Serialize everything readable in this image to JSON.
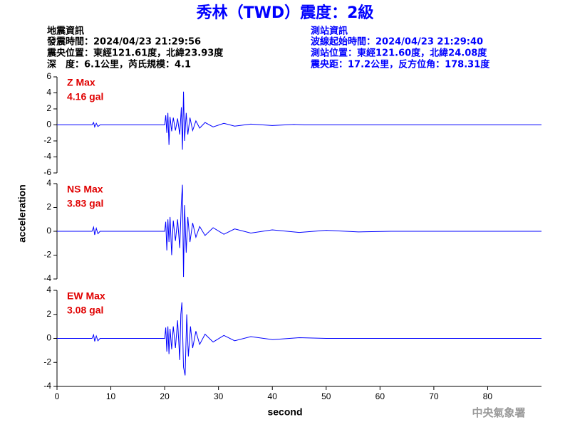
{
  "header": {
    "title": "秀林（TWD）震度：2級",
    "left": [
      "地震資訊",
      "發震時間：2024/04/23 21:29:56",
      "震央位置：東經121.61度，北緯23.93度",
      "深　度：6.1公里，芮氏規模：4.1"
    ],
    "right": [
      "測站資訊",
      "波線起始時間：2024/04/23 21:29:40",
      "測站位置：東經121.60度，北緯24.08度",
      "震央距：17.2公里，反方位角：178.31度"
    ],
    "footer": "中央氣象署"
  },
  "chart_data": [
    {
      "type": "line",
      "annotations": [
        "Z Max",
        "4.16 gal"
      ],
      "color": "#0000ff",
      "xlim": [
        0,
        90
      ],
      "ylim": [
        -6,
        6
      ],
      "yticks": [
        6,
        4,
        2,
        0,
        -2,
        -4,
        -6
      ],
      "x": [
        0,
        6.5,
        6.8,
        7.0,
        7.3,
        7.6,
        8.0,
        20.0,
        20.2,
        20.4,
        20.6,
        20.8,
        21.0,
        21.3,
        21.6,
        22.0,
        22.4,
        22.8,
        23.1,
        23.3,
        23.5,
        23.7,
        24.0,
        24.3,
        24.7,
        25.2,
        25.8,
        26.5,
        27.5,
        29,
        31,
        33,
        36,
        40,
        44,
        46,
        90
      ],
      "values": [
        0,
        0,
        0.3,
        -0.25,
        0.2,
        -0.2,
        0,
        0,
        1.2,
        -1.0,
        1.5,
        -2.5,
        1.0,
        -0.8,
        0.9,
        -0.7,
        0.8,
        -1.2,
        2.2,
        -3.1,
        4.16,
        -2.0,
        1.5,
        -1.2,
        0.9,
        -0.7,
        0.5,
        -0.4,
        0.3,
        -0.25,
        0.2,
        -0.15,
        0.1,
        -0.08,
        0.05,
        0,
        0
      ]
    },
    {
      "type": "line",
      "annotations": [
        "NS Max",
        "3.83 gal"
      ],
      "color": "#0000ff",
      "ylabel": "acceleration",
      "xlim": [
        0,
        90
      ],
      "ylim": [
        -4,
        4
      ],
      "yticks": [
        4,
        2,
        0,
        -2,
        -4
      ],
      "x": [
        0,
        6.5,
        6.8,
        7.0,
        7.3,
        7.6,
        8.0,
        20.0,
        20.2,
        20.4,
        20.6,
        20.8,
        21.0,
        21.3,
        21.6,
        22.0,
        22.4,
        22.8,
        23.1,
        23.3,
        23.5,
        23.7,
        24.0,
        24.3,
        24.7,
        25.2,
        25.8,
        26.5,
        27.5,
        29,
        31,
        33,
        36,
        40,
        45,
        50,
        56,
        62,
        90
      ],
      "values": [
        0,
        0,
        0.35,
        -0.3,
        0.25,
        -0.2,
        0,
        0,
        0.8,
        -1.6,
        1.0,
        -0.9,
        1.2,
        -2.0,
        0.9,
        -0.8,
        1.0,
        -1.4,
        2.4,
        3.9,
        -3.83,
        2.2,
        -1.8,
        1.2,
        -0.9,
        0.7,
        -0.5,
        0.4,
        -0.35,
        0.3,
        -0.25,
        0.2,
        -0.15,
        0.12,
        -0.1,
        0.08,
        -0.05,
        0,
        0
      ]
    },
    {
      "type": "line",
      "annotations": [
        "EW Max",
        "3.08 gal"
      ],
      "color": "#0000ff",
      "xlabel": "second",
      "xlim": [
        0,
        90
      ],
      "ylim": [
        -4,
        4
      ],
      "yticks": [
        4,
        2,
        0,
        -2,
        -4
      ],
      "xticks": [
        0,
        10,
        20,
        30,
        40,
        50,
        60,
        70,
        80
      ],
      "x": [
        0,
        6.5,
        6.8,
        7.0,
        7.3,
        7.6,
        8.0,
        20.0,
        20.2,
        20.4,
        20.6,
        20.8,
        21.0,
        21.3,
        21.6,
        22.0,
        22.4,
        22.8,
        23.0,
        23.2,
        23.5,
        23.8,
        24.1,
        24.4,
        24.8,
        25.2,
        25.8,
        26.5,
        27.5,
        29,
        31,
        33,
        36,
        40,
        45,
        50,
        90
      ],
      "values": [
        0,
        0,
        0.3,
        -0.25,
        0.2,
        -0.2,
        0,
        0,
        0.9,
        -1.1,
        1.0,
        -1.3,
        0.8,
        -0.9,
        1.0,
        -0.8,
        1.5,
        -1.8,
        2.0,
        3.0,
        -2.4,
        -3.08,
        2.0,
        -1.5,
        1.0,
        -0.8,
        0.6,
        -0.5,
        0.35,
        -0.3,
        0.25,
        -0.2,
        0.15,
        -0.1,
        0.06,
        0,
        0
      ]
    }
  ]
}
